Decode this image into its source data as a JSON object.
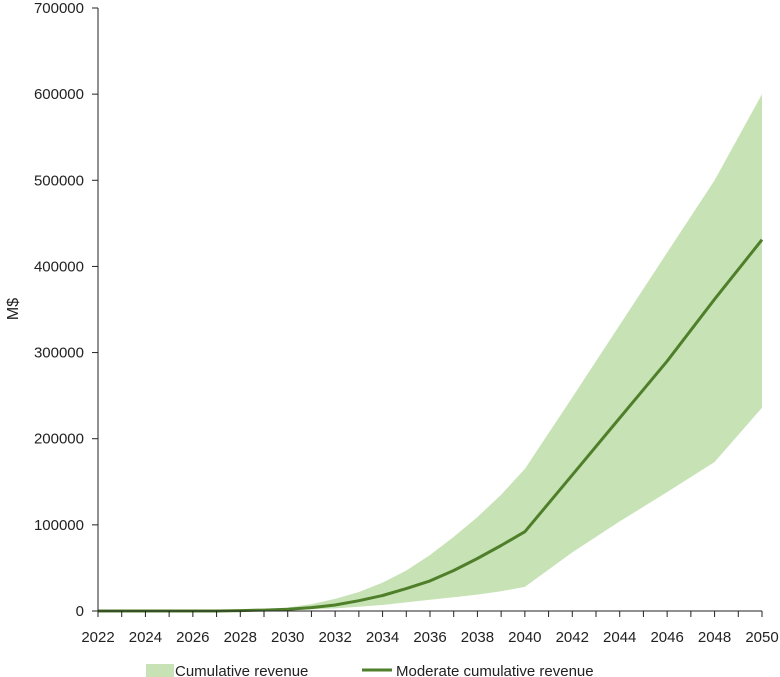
{
  "chart_data": {
    "type": "area",
    "title": "",
    "xlabel": "",
    "ylabel": "M$",
    "xlim": [
      2022,
      2050
    ],
    "ylim": [
      0,
      700000
    ],
    "x_ticks": [
      "2022",
      "2024",
      "2026",
      "2028",
      "2030",
      "2032",
      "2034",
      "2036",
      "2038",
      "2040",
      "2042",
      "2044",
      "2046",
      "2048",
      "2050"
    ],
    "y_ticks": [
      "0",
      "100000",
      "200000",
      "300000",
      "400000",
      "500000",
      "600000",
      "700000"
    ],
    "grid": false,
    "legend_position": "bottom",
    "colors": {
      "band": "#c7e3b6",
      "line": "#4f7f2a",
      "axis": "#222222"
    },
    "series": [
      {
        "name": "Cumulative revenue",
        "kind": "band",
        "x": [
          2022,
          2024,
          2026,
          2027,
          2028,
          2029,
          2030,
          2031,
          2032,
          2033,
          2034,
          2035,
          2036,
          2037,
          2038,
          2039,
          2040,
          2042,
          2044,
          2046,
          2048,
          2050
        ],
        "lower": [
          0,
          0,
          0,
          0,
          0,
          500,
          1000,
          2000,
          3000,
          5000,
          7000,
          10000,
          13000,
          16000,
          19000,
          23000,
          28000,
          68000,
          104000,
          138000,
          173000,
          236000
        ],
        "upper": [
          0,
          0,
          0,
          0,
          1000,
          2000,
          4000,
          8000,
          14000,
          22000,
          33000,
          47000,
          65000,
          86000,
          109000,
          135000,
          165000,
          248000,
          332000,
          416000,
          500000,
          600000
        ]
      },
      {
        "name": "Moderate cumulative revenue",
        "kind": "line",
        "x": [
          2022,
          2024,
          2026,
          2027,
          2028,
          2029,
          2030,
          2031,
          2032,
          2033,
          2034,
          2035,
          2036,
          2037,
          2038,
          2039,
          2040,
          2042,
          2044,
          2046,
          2048,
          2050
        ],
        "values": [
          0,
          0,
          0,
          0,
          500,
          1000,
          2000,
          4000,
          7000,
          12000,
          18000,
          26000,
          35000,
          47000,
          61000,
          76000,
          92000,
          158000,
          224000,
          290000,
          362000,
          431000
        ]
      }
    ]
  }
}
